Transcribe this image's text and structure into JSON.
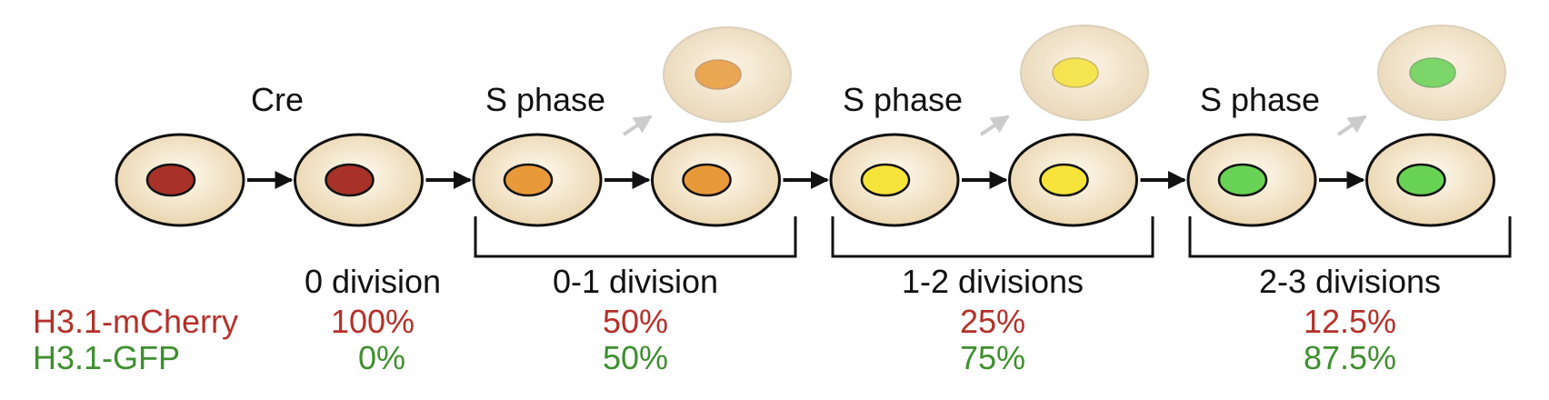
{
  "colors": {
    "cytoplasm_light": "#fdf5e6",
    "cytoplasm_dark": "#ecd9b6",
    "outline": "#111111",
    "nucleus_red": "#a8322a",
    "nucleus_orange": "#e89a3a",
    "nucleus_yellow": "#f6e43a",
    "nucleus_green": "#68d255",
    "text_red": "#b5302a",
    "text_green": "#3f8f2f",
    "faded_arrow": "#cccccc"
  },
  "steps": [
    {
      "label": "Cre"
    },
    {
      "label": "S phase"
    },
    {
      "label": "S phase"
    },
    {
      "label": "S phase"
    }
  ],
  "cells": [
    {
      "nucleus": "nucleus_red"
    },
    {
      "nucleus": "nucleus_red"
    },
    {
      "nucleus": "nucleus_orange"
    },
    {
      "nucleus": "nucleus_orange"
    },
    {
      "nucleus": "nucleus_yellow"
    },
    {
      "nucleus": "nucleus_yellow"
    },
    {
      "nucleus": "nucleus_green"
    },
    {
      "nucleus": "nucleus_green"
    }
  ],
  "faded_cells": [
    {
      "nucleus": "nucleus_orange"
    },
    {
      "nucleus": "nucleus_yellow"
    },
    {
      "nucleus": "nucleus_green"
    }
  ],
  "division_labels": [
    "0 division",
    "0-1 division",
    "1-2 divisions",
    "2-3 divisions"
  ],
  "rows": {
    "mcherry": {
      "label": "H3.1-mCherry",
      "values": [
        "100%",
        "50%",
        "25%",
        "12.5%"
      ]
    },
    "gfp": {
      "label": "H3.1-GFP",
      "values": [
        "0%",
        "50%",
        "75%",
        "87.5%"
      ]
    }
  }
}
